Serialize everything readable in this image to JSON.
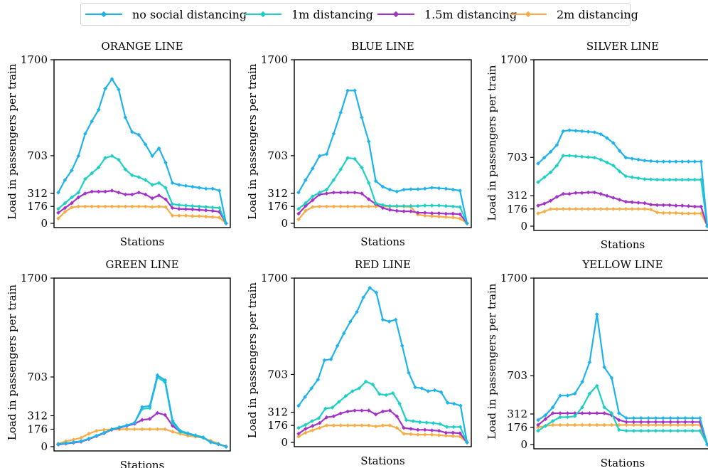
{
  "legend": {
    "items": [
      {
        "label": "no social distancing",
        "color": "#1fb3ec"
      },
      {
        "label": "1m distancing",
        "color": "#1ed0c4"
      },
      {
        "label": "1.5m distancing",
        "color": "#a332c8"
      },
      {
        "label": "2m distancing",
        "color": "#f7ad45"
      }
    ]
  },
  "chart_data": [
    {
      "type": "line",
      "title": "ORANGE LINE",
      "xlabel": "Stations",
      "ylabel": "Load in passengers per train",
      "yticks": [
        0,
        176,
        312,
        703,
        1700
      ],
      "ylim": [
        0,
        1700
      ],
      "series": [
        {
          "name": "no social distancing",
          "values": [
            320,
            450,
            550,
            700,
            930,
            1060,
            1180,
            1400,
            1500,
            1390,
            1100,
            950,
            920,
            820,
            700,
            780,
            630,
            420,
            400,
            390,
            380,
            370,
            360,
            360,
            340,
            0
          ]
        },
        {
          "name": "1m distancing",
          "values": [
            150,
            210,
            270,
            320,
            460,
            520,
            580,
            680,
            700,
            660,
            560,
            500,
            480,
            450,
            400,
            420,
            370,
            200,
            190,
            185,
            180,
            175,
            170,
            165,
            160,
            0
          ]
        },
        {
          "name": "1.5m distancing",
          "values": [
            110,
            160,
            210,
            270,
            310,
            330,
            330,
            330,
            340,
            320,
            300,
            300,
            320,
            300,
            260,
            290,
            250,
            160,
            150,
            148,
            145,
            140,
            135,
            130,
            120,
            0
          ]
        },
        {
          "name": "2m distancing",
          "values": [
            50,
            120,
            165,
            175,
            175,
            175,
            175,
            175,
            175,
            175,
            175,
            175,
            175,
            175,
            170,
            175,
            170,
            80,
            80,
            80,
            75,
            75,
            70,
            65,
            60,
            0
          ]
        }
      ]
    },
    {
      "type": "line",
      "title": "BLUE LINE",
      "xlabel": "Stations",
      "ylabel": "Load in passengers per train",
      "yticks": [
        0,
        176,
        312,
        703,
        1700
      ],
      "ylim": [
        0,
        1700
      ],
      "series": [
        {
          "name": "no social distancing",
          "values": [
            320,
            450,
            570,
            700,
            720,
            930,
            1150,
            1380,
            1380,
            1100,
            850,
            440,
            380,
            350,
            330,
            350,
            355,
            355,
            360,
            370,
            365,
            360,
            350,
            340,
            0
          ]
        },
        {
          "name": "1m distancing",
          "values": [
            150,
            210,
            280,
            320,
            350,
            450,
            560,
            680,
            670,
            580,
            420,
            210,
            190,
            180,
            180,
            180,
            180,
            180,
            185,
            185,
            185,
            180,
            175,
            170,
            0
          ]
        },
        {
          "name": "1.5m distancing",
          "values": [
            100,
            180,
            240,
            300,
            310,
            320,
            320,
            320,
            320,
            310,
            250,
            200,
            160,
            140,
            130,
            125,
            125,
            110,
            110,
            105,
            105,
            100,
            100,
            95,
            0
          ]
        },
        {
          "name": "2m distancing",
          "values": [
            40,
            130,
            170,
            175,
            175,
            175,
            175,
            175,
            175,
            175,
            175,
            175,
            175,
            175,
            175,
            175,
            170,
            90,
            80,
            75,
            70,
            65,
            60,
            50,
            0
          ]
        }
      ]
    },
    {
      "type": "line",
      "title": "SILVER LINE",
      "xlabel": "Stations",
      "ylabel": "Load in passengers per train",
      "yticks": [
        0,
        176,
        312,
        703,
        1700
      ],
      "ylim": [
        0,
        1700
      ],
      "series": [
        {
          "name": "no social distancing",
          "values": [
            640,
            700,
            760,
            830,
            970,
            980,
            975,
            970,
            965,
            960,
            940,
            900,
            850,
            770,
            700,
            690,
            680,
            670,
            665,
            660,
            660,
            660,
            660,
            660,
            660,
            660,
            660,
            0
          ]
        },
        {
          "name": "1m distancing",
          "values": [
            450,
            500,
            550,
            620,
            720,
            720,
            715,
            710,
            705,
            700,
            680,
            650,
            620,
            560,
            510,
            500,
            490,
            480,
            478,
            475,
            475,
            475,
            475,
            475,
            475,
            475,
            475,
            0
          ]
        },
        {
          "name": "1.5m distancing",
          "values": [
            210,
            230,
            260,
            300,
            330,
            330,
            340,
            340,
            345,
            345,
            330,
            310,
            290,
            270,
            250,
            245,
            240,
            235,
            220,
            215,
            215,
            215,
            210,
            210,
            205,
            200,
            200,
            0
          ]
        },
        {
          "name": "2m distancing",
          "values": [
            130,
            150,
            175,
            175,
            176,
            176,
            176,
            176,
            176,
            176,
            176,
            176,
            176,
            176,
            176,
            176,
            176,
            176,
            170,
            140,
            135,
            135,
            135,
            130,
            130,
            130,
            130,
            0
          ]
        }
      ]
    },
    {
      "type": "line",
      "title": "GREEN LINE",
      "xlabel": "Stations",
      "ylabel": "Load in passengers per train",
      "yticks": [
        0,
        176,
        312,
        703,
        1700
      ],
      "ylim": [
        0,
        1700
      ],
      "series": [
        {
          "name": "no social distancing",
          "values": [
            25,
            35,
            45,
            55,
            80,
            110,
            140,
            175,
            195,
            215,
            240,
            400,
            410,
            720,
            670,
            260,
            160,
            135,
            115,
            95,
            45,
            25,
            0
          ]
        },
        {
          "name": "1m distancing",
          "values": [
            25,
            35,
            45,
            55,
            80,
            110,
            140,
            175,
            195,
            215,
            240,
            380,
            390,
            700,
            650,
            240,
            150,
            130,
            110,
            90,
            45,
            25,
            0
          ]
        },
        {
          "name": "1.5m distancing",
          "values": [
            20,
            30,
            40,
            50,
            75,
            105,
            135,
            170,
            190,
            210,
            230,
            270,
            280,
            340,
            320,
            210,
            150,
            130,
            110,
            90,
            45,
            25,
            0
          ]
        },
        {
          "name": "2m distancing",
          "values": [
            30,
            55,
            70,
            90,
            130,
            160,
            170,
            176,
            176,
            176,
            176,
            176,
            176,
            176,
            176,
            150,
            130,
            110,
            100,
            90,
            60,
            30,
            0
          ]
        }
      ]
    },
    {
      "type": "line",
      "title": "RED LINE",
      "xlabel": "Stations",
      "ylabel": "Load in passengers per train",
      "yticks": [
        0,
        176,
        312,
        703,
        1700
      ],
      "ylim": [
        0,
        1700
      ],
      "series": [
        {
          "name": "no social distancing",
          "values": [
            380,
            470,
            560,
            650,
            850,
            860,
            1000,
            1130,
            1250,
            1350,
            1500,
            1600,
            1550,
            1270,
            1250,
            1270,
            1000,
            720,
            570,
            560,
            530,
            540,
            520,
            410,
            400,
            380,
            0
          ]
        },
        {
          "name": "1m distancing",
          "values": [
            150,
            180,
            220,
            250,
            350,
            360,
            420,
            480,
            530,
            560,
            630,
            600,
            500,
            490,
            510,
            400,
            230,
            220,
            210,
            205,
            200,
            190,
            160,
            160,
            160,
            0
          ]
        },
        {
          "name": "1.5m distancing",
          "values": [
            90,
            140,
            170,
            200,
            260,
            270,
            300,
            320,
            330,
            330,
            330,
            290,
            320,
            330,
            270,
            150,
            140,
            130,
            130,
            125,
            120,
            100,
            100,
            95,
            0
          ]
        },
        {
          "name": "2m distancing",
          "values": [
            60,
            100,
            125,
            150,
            176,
            176,
            176,
            176,
            176,
            176,
            176,
            165,
            176,
            176,
            150,
            90,
            85,
            80,
            80,
            80,
            75,
            70,
            65,
            60,
            0
          ]
        }
      ]
    },
    {
      "type": "line",
      "title": "YELLOW LINE",
      "xlabel": "Stations",
      "ylabel": "Load in passengers per train",
      "yticks": [
        0,
        176,
        312,
        703,
        1700
      ],
      "ylim": [
        0,
        1700
      ],
      "series": [
        {
          "name": "no social distancing",
          "values": [
            250,
            300,
            380,
            500,
            500,
            520,
            640,
            840,
            1330,
            790,
            680,
            320,
            270,
            270,
            270,
            270,
            270,
            270,
            270,
            270,
            270,
            270,
            270,
            0
          ]
        },
        {
          "name": "1m distancing",
          "values": [
            140,
            190,
            240,
            280,
            280,
            290,
            380,
            520,
            600,
            380,
            320,
            150,
            140,
            140,
            140,
            140,
            140,
            140,
            140,
            140,
            140,
            140,
            140,
            0
          ]
        },
        {
          "name": "1.5m distancing",
          "values": [
            200,
            260,
            320,
            320,
            320,
            320,
            320,
            320,
            320,
            320,
            300,
            250,
            230,
            230,
            230,
            230,
            230,
            230,
            230,
            230,
            230,
            230,
            230,
            0
          ]
        },
        {
          "name": "2m distancing",
          "values": [
            176,
            190,
            200,
            200,
            200,
            200,
            200,
            200,
            200,
            200,
            200,
            200,
            200,
            200,
            200,
            200,
            200,
            200,
            200,
            200,
            200,
            200,
            200,
            0
          ]
        }
      ]
    }
  ]
}
